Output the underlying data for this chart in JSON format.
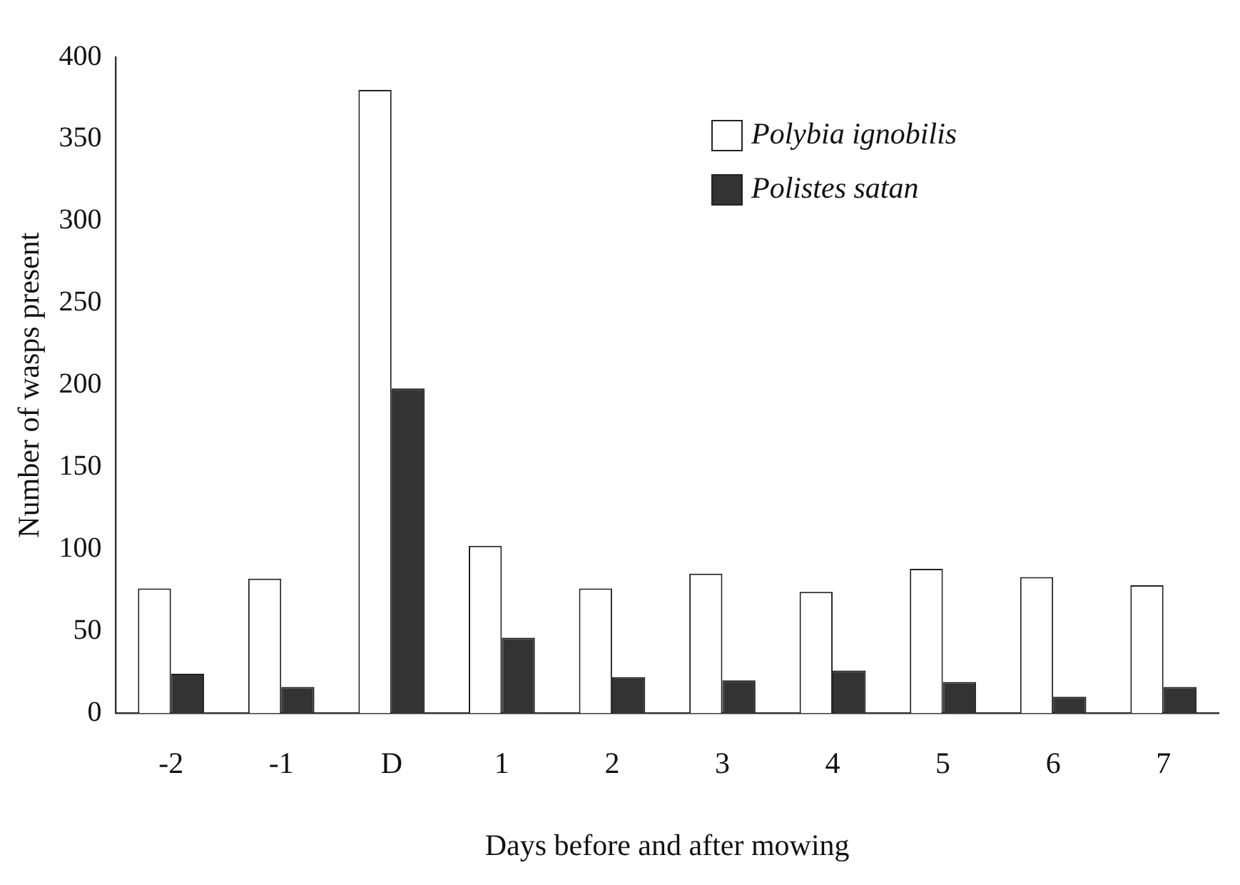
{
  "chart_data": {
    "type": "bar",
    "xlabel": "Days before and after mowing",
    "ylabel": "Number of wasps present",
    "categories": [
      "-2",
      "-1",
      "D",
      "1",
      "2",
      "3",
      "4",
      "5",
      "6",
      "7"
    ],
    "series": [
      {
        "name": "Polybia ignobilis",
        "color": "#ffffff",
        "values": [
          76,
          82,
          380,
          102,
          76,
          85,
          74,
          88,
          83,
          78
        ]
      },
      {
        "name": "Polistes satan",
        "color": "#333333",
        "values": [
          24,
          16,
          198,
          46,
          22,
          20,
          26,
          19,
          10,
          16
        ]
      }
    ],
    "ylim": [
      0,
      400
    ],
    "yticks": [
      0,
      50,
      100,
      150,
      200,
      250,
      300,
      350,
      400
    ],
    "grid": false,
    "legend": "top right"
  }
}
